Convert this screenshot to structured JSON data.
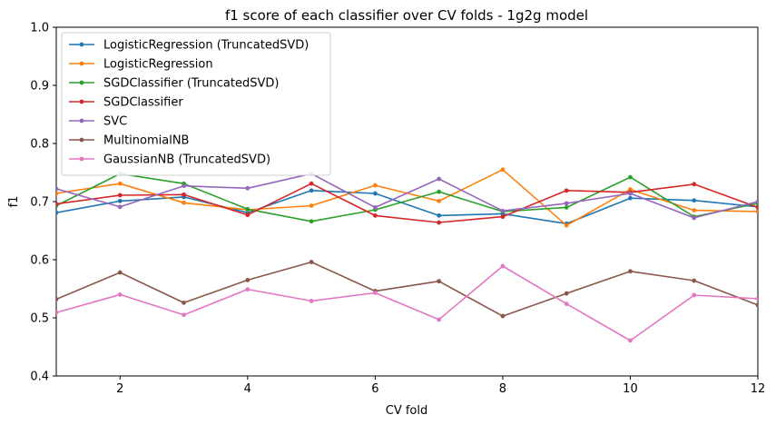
{
  "chart_data": {
    "type": "line",
    "title": "f1 score of each classifier over CV folds - 1g2g model",
    "xlabel": "CV fold",
    "ylabel": "f1",
    "xlim": [
      1,
      12
    ],
    "ylim": [
      0.4,
      1.0
    ],
    "xticks": [
      "2",
      "4",
      "6",
      "8",
      "10",
      "12"
    ],
    "yticks": [
      "0.4",
      "0.5",
      "0.6",
      "0.7",
      "0.8",
      "0.9",
      "1.0"
    ],
    "legend_position": "top-left",
    "grid": false,
    "x": [
      1,
      2,
      3,
      4,
      5,
      6,
      7,
      8,
      9,
      10,
      11,
      12
    ],
    "series": [
      {
        "name": "LogisticRegression (TruncatedSVD)",
        "color": "#1f77b4",
        "values": [
          0.681,
          0.701,
          0.708,
          0.681,
          0.719,
          0.714,
          0.676,
          0.679,
          0.662,
          0.706,
          0.702,
          0.691
        ]
      },
      {
        "name": "LogisticRegression",
        "color": "#ff7f0e",
        "values": [
          0.714,
          0.731,
          0.698,
          0.686,
          0.693,
          0.728,
          0.701,
          0.755,
          0.659,
          0.721,
          0.685,
          0.683
        ]
      },
      {
        "name": "SGDClassifier (TruncatedSVD)",
        "color": "#2ca02c",
        "values": [
          0.693,
          0.748,
          0.731,
          0.687,
          0.666,
          0.686,
          0.717,
          0.683,
          0.69,
          0.742,
          0.674,
          0.697
        ]
      },
      {
        "name": "SGDClassifier",
        "color": "#d62728",
        "values": [
          0.696,
          0.711,
          0.712,
          0.677,
          0.731,
          0.676,
          0.664,
          0.674,
          0.719,
          0.716,
          0.73,
          0.69
        ]
      },
      {
        "name": "SVC",
        "color": "#9467bd",
        "values": [
          0.722,
          0.691,
          0.727,
          0.723,
          0.748,
          0.69,
          0.739,
          0.684,
          0.697,
          0.714,
          0.672,
          0.7
        ]
      },
      {
        "name": "MultinomialNB",
        "color": "#8c564b",
        "values": [
          0.532,
          0.578,
          0.526,
          0.565,
          0.596,
          0.546,
          0.563,
          0.503,
          0.542,
          0.58,
          0.564,
          0.522
        ]
      },
      {
        "name": "GaussianNB (TruncatedSVD)",
        "color": "#e377c2",
        "values": [
          0.509,
          0.54,
          0.505,
          0.549,
          0.529,
          0.543,
          0.497,
          0.589,
          0.524,
          0.461,
          0.539,
          0.533
        ]
      }
    ]
  }
}
